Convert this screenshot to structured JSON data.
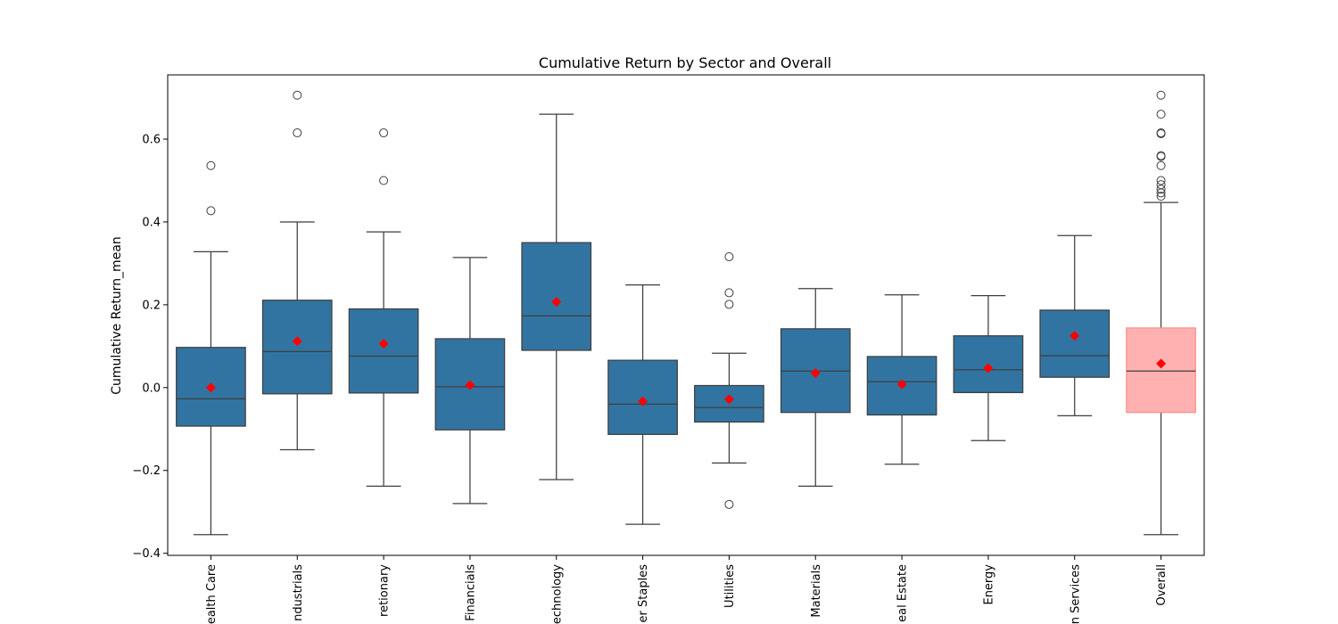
{
  "chart_data": {
    "type": "box",
    "title": "Cumulative Return by Sector and Overall",
    "xlabel": "",
    "ylabel": "Cumulative Return_mean",
    "ylim": [
      -0.405,
      0.755
    ],
    "yticks": [
      -0.4,
      -0.2,
      0.0,
      0.2,
      0.4,
      0.6
    ],
    "ytick_labels": [
      "−0.4",
      "−0.2",
      "0.0",
      "0.2",
      "0.4",
      "0.6"
    ],
    "grid": false,
    "legend": "none",
    "colors": {
      "box": "#3274a1",
      "overall_box": "#ffb1b1",
      "overall_edge": "#ff8f8f",
      "mean_marker": "#ff0000",
      "line": "#3f3f3f"
    },
    "categories": [
      "Health Care",
      "Industrials",
      "Consumer Discretionary",
      "Financials",
      "Information Technology",
      "Consumer Staples",
      "Utilities",
      "Materials",
      "Real Estate",
      "Energy",
      "Communication Services",
      "Overall"
    ],
    "tick_labels_visible": [
      "ealth Care",
      "ndustrials",
      "retionary",
      "Financials",
      "echnology",
      "er Staples",
      "Utilities",
      "Materials",
      "eal Estate",
      "Energy",
      "n Services",
      "Overall"
    ],
    "boxes": [
      {
        "category": "Health Care",
        "whisker_low": -0.355,
        "q1": -0.093,
        "median": -0.027,
        "q3": 0.097,
        "whisker_high": 0.328,
        "mean": 0.0,
        "outliers": [
          0.536,
          0.427
        ]
      },
      {
        "category": "Industrials",
        "whisker_low": -0.15,
        "q1": -0.015,
        "median": 0.087,
        "q3": 0.211,
        "whisker_high": 0.4,
        "mean": 0.112,
        "outliers": [
          0.706,
          0.615
        ]
      },
      {
        "category": "Consumer Discretionary",
        "whisker_low": -0.238,
        "q1": -0.013,
        "median": 0.076,
        "q3": 0.19,
        "whisker_high": 0.376,
        "mean": 0.106,
        "outliers": [
          0.615,
          0.5
        ]
      },
      {
        "category": "Financials",
        "whisker_low": -0.28,
        "q1": -0.102,
        "median": 0.002,
        "q3": 0.118,
        "whisker_high": 0.314,
        "mean": 0.006,
        "outliers": []
      },
      {
        "category": "Information Technology",
        "whisker_low": -0.222,
        "q1": 0.09,
        "median": 0.173,
        "q3": 0.35,
        "whisker_high": 0.66,
        "mean": 0.207,
        "outliers": []
      },
      {
        "category": "Consumer Staples",
        "whisker_low": -0.33,
        "q1": -0.113,
        "median": -0.04,
        "q3": 0.066,
        "whisker_high": 0.248,
        "mean": -0.033,
        "outliers": []
      },
      {
        "category": "Utilities",
        "whisker_low": -0.182,
        "q1": -0.083,
        "median": -0.048,
        "q3": 0.005,
        "whisker_high": 0.083,
        "mean": -0.028,
        "outliers": [
          0.316,
          0.229,
          0.201,
          -0.282
        ]
      },
      {
        "category": "Materials",
        "whisker_low": -0.238,
        "q1": -0.06,
        "median": 0.04,
        "q3": 0.142,
        "whisker_high": 0.239,
        "mean": 0.035,
        "outliers": []
      },
      {
        "category": "Real Estate",
        "whisker_low": -0.185,
        "q1": -0.066,
        "median": 0.014,
        "q3": 0.075,
        "whisker_high": 0.224,
        "mean": 0.008,
        "outliers": []
      },
      {
        "category": "Energy",
        "whisker_low": -0.128,
        "q1": -0.012,
        "median": 0.043,
        "q3": 0.125,
        "whisker_high": 0.222,
        "mean": 0.047,
        "outliers": []
      },
      {
        "category": "Communication Services",
        "whisker_low": -0.068,
        "q1": 0.025,
        "median": 0.077,
        "q3": 0.187,
        "whisker_high": 0.367,
        "mean": 0.125,
        "outliers": []
      },
      {
        "category": "Overall",
        "whisker_low": -0.355,
        "q1": -0.06,
        "median": 0.04,
        "q3": 0.144,
        "whisker_high": 0.447,
        "mean": 0.058,
        "outliers": [
          0.706,
          0.66,
          0.615,
          0.613,
          0.56,
          0.558,
          0.536,
          0.5,
          0.49,
          0.479,
          0.47,
          0.462
        ]
      }
    ]
  }
}
